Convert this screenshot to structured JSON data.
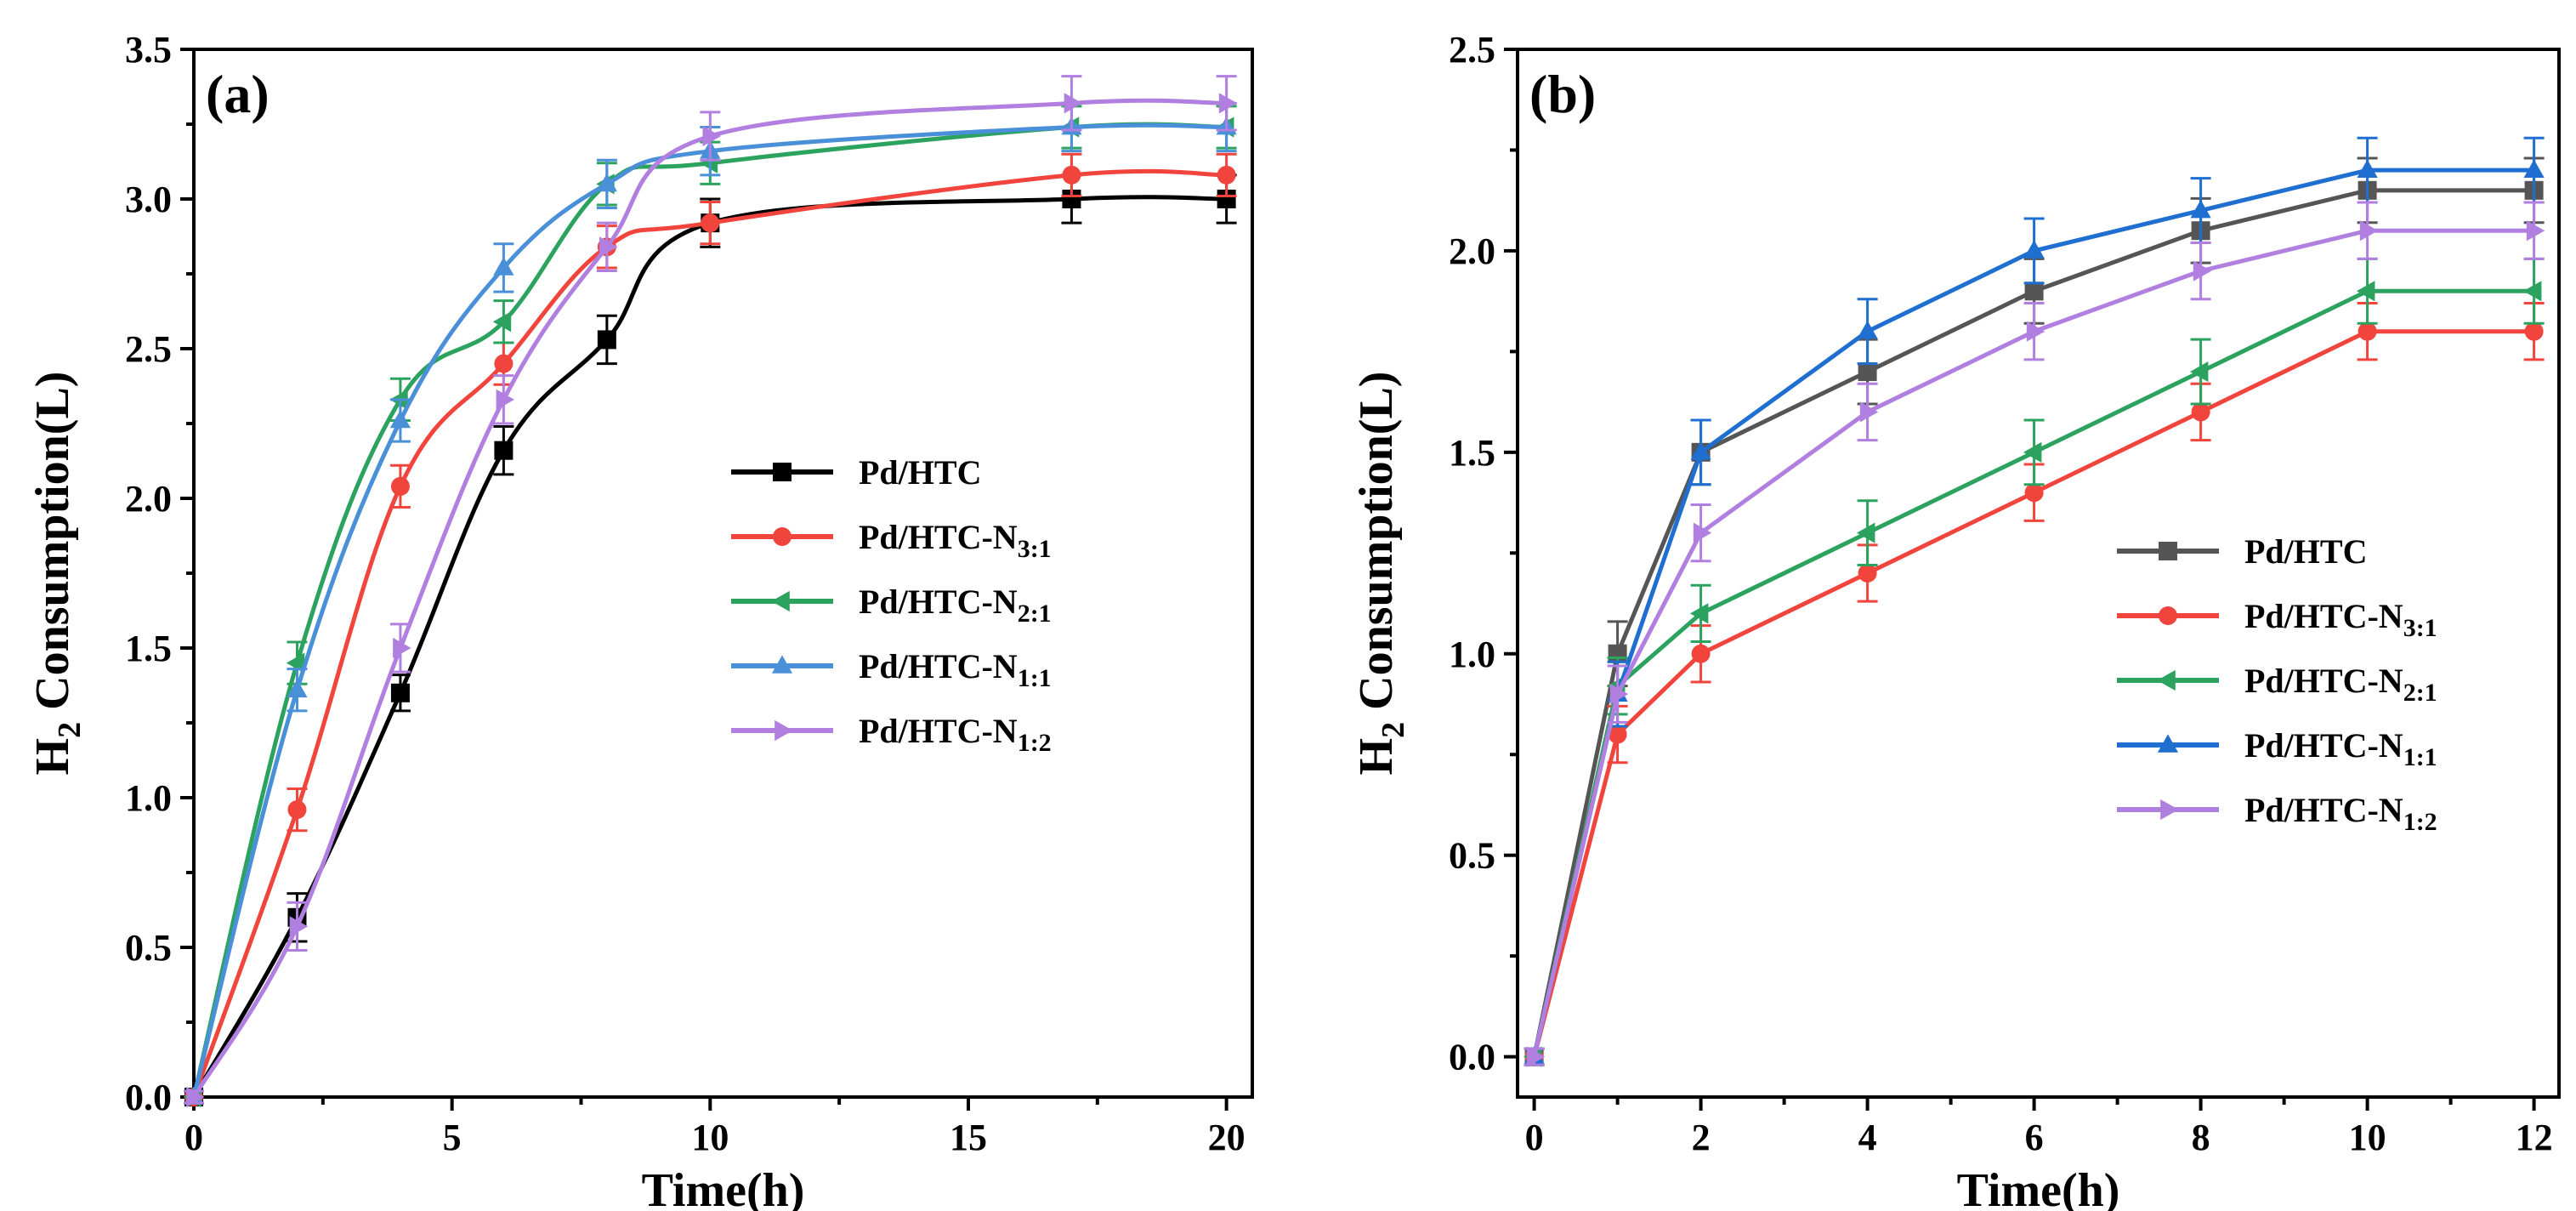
{
  "chart_data": [
    {
      "type": "line",
      "panel_label": "(a)",
      "xlabel": "Time(h)",
      "ylabel_main": "H",
      "ylabel_sub": "2",
      "ylabel_rest": " Consumption(L)",
      "xlim": [
        0,
        20.5
      ],
      "ylim": [
        0,
        3.5
      ],
      "xticks": [
        0,
        5,
        10,
        15,
        20
      ],
      "yticks": [
        0.0,
        0.5,
        1.0,
        1.5,
        2.0,
        2.5,
        3.0,
        3.5
      ],
      "ytick_labels": [
        "0.0",
        "0.5",
        "1.0",
        "1.5",
        "2.0",
        "2.5",
        "3.0",
        "3.5"
      ],
      "x": [
        0,
        2,
        4,
        6,
        8,
        10,
        17,
        20
      ],
      "series": [
        {
          "name": "Pd/HTC",
          "sub": "",
          "color": "#000000",
          "marker": "square",
          "values": [
            0,
            0.6,
            1.35,
            2.16,
            2.53,
            2.92,
            3.0,
            3.0
          ],
          "errors": [
            0.02,
            0.08,
            0.06,
            0.08,
            0.08,
            0.08,
            0.08,
            0.08
          ]
        },
        {
          "name": "Pd/HTC-N",
          "sub": "3:1",
          "color": "#f0443c",
          "marker": "circle",
          "values": [
            0,
            0.96,
            2.04,
            2.45,
            2.84,
            2.92,
            3.08,
            3.08
          ],
          "errors": [
            0.02,
            0.07,
            0.07,
            0.07,
            0.07,
            0.07,
            0.07,
            0.07
          ]
        },
        {
          "name": "Pd/HTC-N",
          "sub": "2:1",
          "color": "#2ca25f",
          "marker": "triangle-left",
          "values": [
            0,
            1.45,
            2.33,
            2.59,
            3.05,
            3.12,
            3.24,
            3.24
          ],
          "errors": [
            0.02,
            0.07,
            0.07,
            0.07,
            0.07,
            0.07,
            0.07,
            0.07
          ]
        },
        {
          "name": "Pd/HTC-N",
          "sub": "1:1",
          "color": "#4a90d9",
          "marker": "triangle-up",
          "values": [
            0,
            1.36,
            2.26,
            2.77,
            3.05,
            3.16,
            3.24,
            3.24
          ],
          "errors": [
            0.02,
            0.07,
            0.07,
            0.08,
            0.08,
            0.08,
            0.08,
            0.08
          ]
        },
        {
          "name": "Pd/HTC-N",
          "sub": "1:2",
          "color": "#b07fe0",
          "marker": "triangle-right",
          "values": [
            0,
            0.57,
            1.5,
            2.33,
            2.84,
            3.21,
            3.32,
            3.32
          ],
          "errors": [
            0.02,
            0.08,
            0.08,
            0.08,
            0.08,
            0.08,
            0.09,
            0.09
          ]
        }
      ],
      "legend_position": "center-right"
    },
    {
      "type": "line",
      "panel_label": "(b)",
      "xlabel": "Time(h)",
      "ylabel_main": "H",
      "ylabel_sub": "2",
      "ylabel_rest": " Consumption(L)",
      "xlim": [
        -0.2,
        12.3
      ],
      "ylim": [
        -0.1,
        2.5
      ],
      "xticks": [
        0,
        2,
        4,
        6,
        8,
        10,
        12
      ],
      "yticks": [
        0.0,
        0.5,
        1.0,
        1.5,
        2.0,
        2.5
      ],
      "ytick_labels": [
        "0.0",
        "0.5",
        "1.0",
        "1.5",
        "2.0",
        "2.5"
      ],
      "x": [
        0,
        1,
        2,
        4,
        6,
        8,
        10,
        12
      ],
      "series": [
        {
          "name": "Pd/HTC",
          "sub": "",
          "color": "#555555",
          "marker": "square",
          "values": [
            0,
            1.0,
            1.5,
            1.7,
            1.9,
            2.05,
            2.15,
            2.15
          ],
          "errors": [
            0.02,
            0.08,
            0.08,
            0.08,
            0.08,
            0.08,
            0.08,
            0.08
          ]
        },
        {
          "name": "Pd/HTC-N",
          "sub": "3:1",
          "color": "#f0443c",
          "marker": "circle",
          "values": [
            0,
            0.8,
            1.0,
            1.2,
            1.4,
            1.6,
            1.8,
            1.8
          ],
          "errors": [
            0.02,
            0.07,
            0.07,
            0.07,
            0.07,
            0.07,
            0.07,
            0.07
          ]
        },
        {
          "name": "Pd/HTC-N",
          "sub": "2:1",
          "color": "#2ca25f",
          "marker": "triangle-left",
          "values": [
            0,
            0.92,
            1.1,
            1.3,
            1.5,
            1.7,
            1.9,
            1.9
          ],
          "errors": [
            0.02,
            0.07,
            0.07,
            0.08,
            0.08,
            0.08,
            0.08,
            0.08
          ]
        },
        {
          "name": "Pd/HTC-N",
          "sub": "1:1",
          "color": "#1f6fd1",
          "marker": "triangle-up",
          "values": [
            0,
            0.9,
            1.5,
            1.8,
            2.0,
            2.1,
            2.2,
            2.2
          ],
          "errors": [
            0.02,
            0.08,
            0.08,
            0.08,
            0.08,
            0.08,
            0.08,
            0.08
          ]
        },
        {
          "name": "Pd/HTC-N",
          "sub": "1:2",
          "color": "#b07fe0",
          "marker": "triangle-right",
          "values": [
            0,
            0.9,
            1.3,
            1.6,
            1.8,
            1.95,
            2.05,
            2.05
          ],
          "errors": [
            0.02,
            0.07,
            0.07,
            0.07,
            0.07,
            0.07,
            0.07,
            0.07
          ]
        }
      ],
      "legend_position": "center-right"
    }
  ]
}
